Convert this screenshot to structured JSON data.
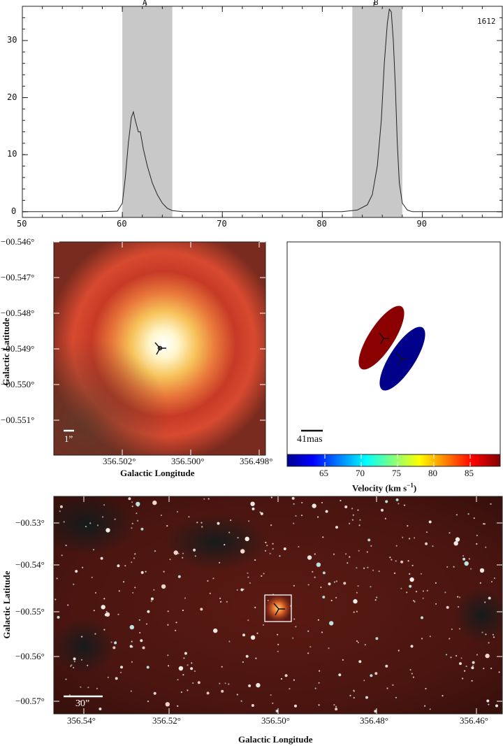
{
  "spectrum": {
    "label_A": "A",
    "label_B": "B",
    "corner_label": "1612",
    "y_ticks": [
      "0",
      "10",
      "20",
      "30"
    ],
    "x_ticks": [
      "50",
      "60",
      "70",
      "80",
      "90"
    ]
  },
  "zoom_image": {
    "y_ticks": [
      "−00.546°",
      "−00.547°",
      "−00.548°",
      "−00.549°",
      "−00.550°",
      "−00.551°"
    ],
    "x_ticks": [
      "356.502°",
      "356.500°",
      "356.498°"
    ],
    "xlabel": "Galactic Longitude",
    "ylabel": "Galactic Latitude",
    "scalebar": "1”"
  },
  "maser_map": {
    "scalebar": "41mas",
    "colorbar_ticks": [
      "65",
      "70",
      "75",
      "80",
      "85"
    ],
    "colorbar_label": "Velocity (km s",
    "colorbar_label_sup": "−1",
    "colorbar_label_end": ")",
    "colors": {
      "red_spot": "#8b0000",
      "blue_spot": "#00008b"
    }
  },
  "wide_image": {
    "y_ticks": [
      "−00.53°",
      "−00.54°",
      "−00.55°",
      "−00.56°",
      "−00.57°"
    ],
    "x_ticks": [
      "356.54°",
      "356.52°",
      "356.50°",
      "356.48°",
      "356.46°"
    ],
    "xlabel": "Galactic Longitude",
    "ylabel": "Galactic Latitude",
    "scalebar": "30”"
  },
  "chart_data": {
    "type": "line",
    "title": "",
    "xlabel": "",
    "ylabel": "",
    "xlim": [
      50,
      98
    ],
    "ylim": [
      -1,
      36
    ],
    "shaded_ranges": [
      {
        "name": "A",
        "from": 60,
        "to": 65
      },
      {
        "name": "B",
        "from": 83,
        "to": 88
      }
    ],
    "series": [
      {
        "x": [
          50,
          58,
          59.5,
          60,
          60.3,
          60.6,
          60.9,
          61.1,
          61.3,
          61.6,
          61.8,
          62.1,
          62.5,
          63.0,
          63.5,
          64.0,
          64.5,
          65.0,
          66,
          75,
          82,
          83.5,
          84.5,
          85.0,
          85.5,
          85.9,
          86.2,
          86.5,
          86.7,
          86.9,
          87.1,
          87.3,
          87.5,
          87.7,
          88.0,
          88.5,
          89,
          98
        ],
        "y": [
          0,
          0,
          0.1,
          1.5,
          6,
          12,
          16.5,
          17.5,
          16,
          14,
          14,
          11,
          8,
          5,
          3,
          1.5,
          0.6,
          0.2,
          0,
          0,
          0,
          0.3,
          1.2,
          3,
          8,
          16,
          26,
          33,
          35.5,
          35,
          30,
          22,
          12,
          5,
          1.5,
          0.3,
          0,
          0
        ]
      }
    ]
  }
}
